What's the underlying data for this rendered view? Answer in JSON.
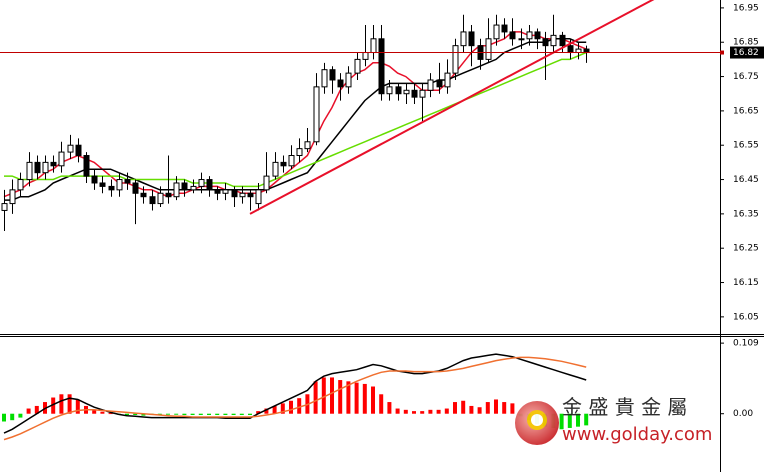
{
  "chart_data": [
    {
      "type": "candlestick",
      "ylim": [
        16.003,
        16.973
      ],
      "yticks": [
        16.05,
        16.15,
        16.25,
        16.35,
        16.45,
        16.55,
        16.65,
        16.75,
        16.85,
        16.95
      ],
      "grid": false,
      "up_color": "#ffffff",
      "down_color": "#000000",
      "outline_color": "#000000",
      "open": [
        16.36,
        16.38,
        16.42,
        16.45,
        16.5,
        16.47,
        16.5,
        16.49,
        16.53,
        16.55,
        16.52,
        16.46,
        16.44,
        16.43,
        16.42,
        16.45,
        16.44,
        16.41,
        16.4,
        16.38,
        16.41,
        16.4,
        16.44,
        16.42,
        16.43,
        16.45,
        16.42,
        16.41,
        16.42,
        16.4,
        16.41,
        16.38,
        16.42,
        16.46,
        16.5,
        16.49,
        16.52,
        16.54,
        16.56,
        16.72,
        16.77,
        16.74,
        16.72,
        16.76,
        16.8,
        16.82,
        16.86,
        16.7,
        16.72,
        16.7,
        16.71,
        16.69,
        16.71,
        16.74,
        16.72,
        16.76,
        16.84,
        16.88,
        16.84,
        16.8,
        16.86,
        16.9,
        16.88,
        16.86,
        16.86,
        16.88,
        16.86,
        16.84,
        16.87,
        16.84,
        16.82,
        16.83
      ],
      "high": [
        16.42,
        16.45,
        16.47,
        16.53,
        16.52,
        16.52,
        16.52,
        16.56,
        16.58,
        16.57,
        16.53,
        16.48,
        16.46,
        16.45,
        16.47,
        16.47,
        16.45,
        16.43,
        16.42,
        16.43,
        16.52,
        16.46,
        16.45,
        16.45,
        16.47,
        16.46,
        16.43,
        16.44,
        16.43,
        16.43,
        16.42,
        16.44,
        16.53,
        16.53,
        16.52,
        16.55,
        16.57,
        16.6,
        16.76,
        16.79,
        16.78,
        16.76,
        16.78,
        16.82,
        16.9,
        16.9,
        16.9,
        16.74,
        16.73,
        16.73,
        16.73,
        16.73,
        16.76,
        16.79,
        16.8,
        16.86,
        16.93,
        16.9,
        16.86,
        16.92,
        16.93,
        16.92,
        16.92,
        16.89,
        16.9,
        16.89,
        16.88,
        16.93,
        16.88,
        16.86,
        16.85,
        16.84
      ],
      "low": [
        16.3,
        16.35,
        16.4,
        16.43,
        16.45,
        16.45,
        16.47,
        16.47,
        16.51,
        16.5,
        16.44,
        16.42,
        16.41,
        16.4,
        16.4,
        16.42,
        16.32,
        16.38,
        16.36,
        16.37,
        16.38,
        16.39,
        16.4,
        16.41,
        16.41,
        16.4,
        16.39,
        16.39,
        16.37,
        16.38,
        16.36,
        16.36,
        16.41,
        16.45,
        16.47,
        16.48,
        16.5,
        16.53,
        16.55,
        16.7,
        16.7,
        16.68,
        16.7,
        16.74,
        16.78,
        16.8,
        16.68,
        16.68,
        16.68,
        16.67,
        16.67,
        16.62,
        16.69,
        16.7,
        16.7,
        16.74,
        16.82,
        16.78,
        16.77,
        16.79,
        16.84,
        16.86,
        16.84,
        16.83,
        16.84,
        16.83,
        16.74,
        16.82,
        16.82,
        16.8,
        16.8,
        16.79
      ],
      "close": [
        16.38,
        16.42,
        16.45,
        16.5,
        16.47,
        16.5,
        16.49,
        16.53,
        16.55,
        16.52,
        16.46,
        16.44,
        16.43,
        16.42,
        16.45,
        16.44,
        16.41,
        16.4,
        16.38,
        16.41,
        16.4,
        16.44,
        16.42,
        16.43,
        16.45,
        16.42,
        16.41,
        16.42,
        16.4,
        16.41,
        16.4,
        16.42,
        16.46,
        16.5,
        16.49,
        16.52,
        16.54,
        16.56,
        16.72,
        16.77,
        16.74,
        16.72,
        16.76,
        16.8,
        16.82,
        16.86,
        16.7,
        16.72,
        16.7,
        16.71,
        16.69,
        16.71,
        16.74,
        16.72,
        16.76,
        16.84,
        16.88,
        16.84,
        16.8,
        16.86,
        16.9,
        16.88,
        16.86,
        16.86,
        16.88,
        16.86,
        16.84,
        16.87,
        16.84,
        16.82,
        16.83,
        16.82
      ],
      "lines": [
        {
          "color": "#e8102a",
          "values": [
            16.4,
            16.41,
            16.42,
            16.44,
            16.45,
            16.47,
            16.48,
            16.5,
            16.51,
            16.52,
            16.51,
            16.5,
            16.48,
            16.46,
            16.44,
            16.44,
            16.43,
            16.42,
            16.42,
            16.41,
            16.4,
            16.41,
            16.41,
            16.42,
            16.43,
            16.43,
            16.43,
            16.42,
            16.42,
            16.41,
            16.41,
            16.41,
            16.42,
            16.44,
            16.46,
            16.48,
            16.5,
            16.52,
            16.57,
            16.62,
            16.66,
            16.71,
            16.74,
            16.76,
            16.77,
            16.79,
            16.79,
            16.78,
            16.76,
            16.75,
            16.73,
            16.71,
            16.71,
            16.71,
            16.73,
            16.76,
            16.79,
            16.82,
            16.84,
            16.84,
            16.85,
            16.86,
            16.88,
            16.88,
            16.87,
            16.87,
            16.86,
            16.86,
            16.86,
            16.85,
            16.84,
            16.83
          ]
        },
        {
          "color": "#000000",
          "values": [
            16.39,
            16.39,
            16.4,
            16.4,
            16.41,
            16.42,
            16.44,
            16.45,
            16.46,
            16.47,
            16.48,
            16.48,
            16.48,
            16.48,
            16.47,
            16.46,
            16.45,
            16.44,
            16.43,
            16.42,
            16.42,
            16.42,
            16.42,
            16.42,
            16.42,
            16.42,
            16.42,
            16.42,
            16.42,
            16.42,
            16.42,
            16.42,
            16.42,
            16.43,
            16.44,
            16.45,
            16.46,
            16.47,
            16.5,
            16.53,
            16.56,
            16.59,
            16.62,
            16.65,
            16.68,
            16.7,
            16.72,
            16.73,
            16.73,
            16.73,
            16.73,
            16.73,
            16.73,
            16.74,
            16.74,
            16.75,
            16.76,
            16.77,
            16.78,
            16.79,
            16.8,
            16.82,
            16.83,
            16.84,
            16.85,
            16.85,
            16.85,
            16.86,
            16.86,
            16.86,
            16.85,
            16.85
          ]
        },
        {
          "color": "#66dd00",
          "values": [
            16.46,
            16.46,
            16.45,
            16.45,
            16.45,
            16.45,
            16.45,
            16.46,
            16.46,
            16.46,
            16.46,
            16.46,
            16.46,
            16.46,
            16.46,
            16.45,
            16.45,
            16.45,
            16.45,
            16.45,
            16.45,
            16.45,
            16.45,
            16.44,
            16.44,
            16.44,
            16.44,
            16.44,
            16.43,
            16.43,
            16.43,
            16.43,
            16.44,
            16.45,
            16.46,
            16.47,
            16.48,
            16.49,
            16.5,
            16.51,
            16.52,
            16.53,
            16.54,
            16.55,
            16.56,
            16.57,
            16.58,
            16.59,
            16.6,
            16.61,
            16.62,
            16.63,
            16.64,
            16.65,
            16.66,
            16.67,
            16.68,
            16.69,
            16.7,
            16.71,
            16.72,
            16.73,
            16.74,
            16.75,
            16.76,
            16.77,
            16.78,
            16.79,
            16.8,
            16.8,
            16.81,
            16.82
          ]
        }
      ],
      "trendline": {
        "color": "#e8102a",
        "x": [
          30,
          80
        ],
        "y": [
          16.35,
          16.985
        ]
      },
      "last_price": {
        "color": "#c00000",
        "value": 16.82
      }
    },
    {
      "type": "macd",
      "ylim": [
        -0.09,
        0.12
      ],
      "yticks": [
        0.109,
        {
          "value": 0,
          "label": "0.00"
        }
      ],
      "up_color": "#ff0000",
      "down_color": "#00dd00",
      "histogram": [
        -0.012,
        -0.01,
        -0.006,
        0.008,
        0.012,
        0.018,
        0.025,
        0.03,
        0.03,
        0.022,
        0.012,
        0.006,
        0.003,
        0.001,
        -0.001,
        -0.002,
        -0.002,
        -0.003,
        -0.002,
        -0.002,
        -0.001,
        -0.001,
        -0.002,
        -0.002,
        -0.002,
        -0.002,
        -0.002,
        -0.002,
        -0.002,
        -0.002,
        -0.002,
        0.004,
        0.008,
        0.012,
        0.016,
        0.02,
        0.024,
        0.03,
        0.05,
        0.056,
        0.056,
        0.052,
        0.05,
        0.048,
        0.046,
        0.042,
        0.03,
        0.018,
        0.008,
        0.006,
        0.004,
        0.004,
        0.006,
        0.006,
        0.008,
        0.018,
        0.02,
        0.012,
        0.01,
        0.018,
        0.022,
        0.018,
        0.016,
        -0.004,
        -0.01,
        -0.016,
        -0.02,
        -0.022,
        -0.024,
        -0.022,
        -0.02,
        -0.018
      ],
      "lines": [
        {
          "color": "#000000",
          "values": [
            -0.03,
            -0.024,
            -0.016,
            -0.008,
            0.0,
            0.008,
            0.014,
            0.02,
            0.024,
            0.022,
            0.016,
            0.01,
            0.006,
            0.002,
            -0.001,
            -0.003,
            -0.004,
            -0.005,
            -0.006,
            -0.006,
            -0.006,
            -0.006,
            -0.006,
            -0.006,
            -0.006,
            -0.006,
            -0.006,
            -0.007,
            -0.007,
            -0.007,
            -0.007,
            0.0,
            0.006,
            0.012,
            0.018,
            0.024,
            0.03,
            0.036,
            0.05,
            0.058,
            0.062,
            0.064,
            0.066,
            0.068,
            0.072,
            0.076,
            0.074,
            0.07,
            0.066,
            0.064,
            0.062,
            0.062,
            0.064,
            0.066,
            0.07,
            0.076,
            0.082,
            0.086,
            0.088,
            0.09,
            0.092,
            0.09,
            0.088,
            0.084,
            0.08,
            0.076,
            0.072,
            0.068,
            0.064,
            0.06,
            0.056,
            0.052
          ]
        },
        {
          "color": "#f07030",
          "values": [
            -0.04,
            -0.036,
            -0.031,
            -0.025,
            -0.019,
            -0.013,
            -0.007,
            -0.002,
            0.002,
            0.005,
            0.006,
            0.006,
            0.005,
            0.004,
            0.003,
            0.002,
            0.001,
            0.0,
            -0.001,
            -0.002,
            -0.003,
            -0.004,
            -0.004,
            -0.005,
            -0.005,
            -0.005,
            -0.005,
            -0.005,
            -0.005,
            -0.005,
            -0.005,
            -0.004,
            -0.002,
            0.0,
            0.003,
            0.006,
            0.01,
            0.014,
            0.02,
            0.026,
            0.032,
            0.038,
            0.044,
            0.05,
            0.055,
            0.06,
            0.064,
            0.066,
            0.066,
            0.066,
            0.065,
            0.065,
            0.065,
            0.065,
            0.066,
            0.068,
            0.07,
            0.073,
            0.076,
            0.079,
            0.082,
            0.084,
            0.086,
            0.087,
            0.087,
            0.086,
            0.085,
            0.083,
            0.081,
            0.078,
            0.075,
            0.072
          ]
        }
      ]
    }
  ],
  "watermark": {
    "brand": "金 盛 貴 金 屬",
    "url": "www.golday.com"
  }
}
